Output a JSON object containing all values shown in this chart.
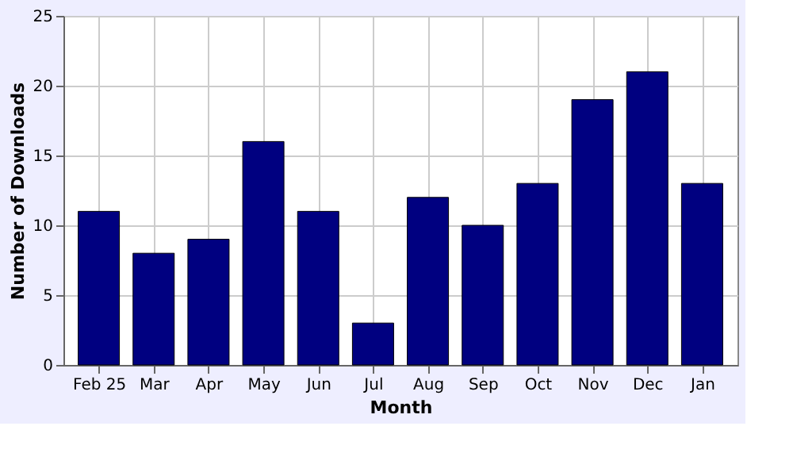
{
  "chart_data": {
    "type": "bar",
    "xlabel": "Month",
    "ylabel": "Number of Downloads",
    "categories": [
      "Feb 25",
      "Mar",
      "Apr",
      "May",
      "Jun",
      "Jul",
      "Aug",
      "Sep",
      "Oct",
      "Nov",
      "Dec",
      "Jan"
    ],
    "values": [
      11,
      8,
      9,
      16,
      11,
      3,
      12,
      10,
      13,
      19,
      21,
      13
    ],
    "color": "#000080",
    "ylim": [
      0,
      25
    ],
    "yticks": [
      0,
      5,
      10,
      15,
      20,
      25
    ],
    "grid": true
  }
}
